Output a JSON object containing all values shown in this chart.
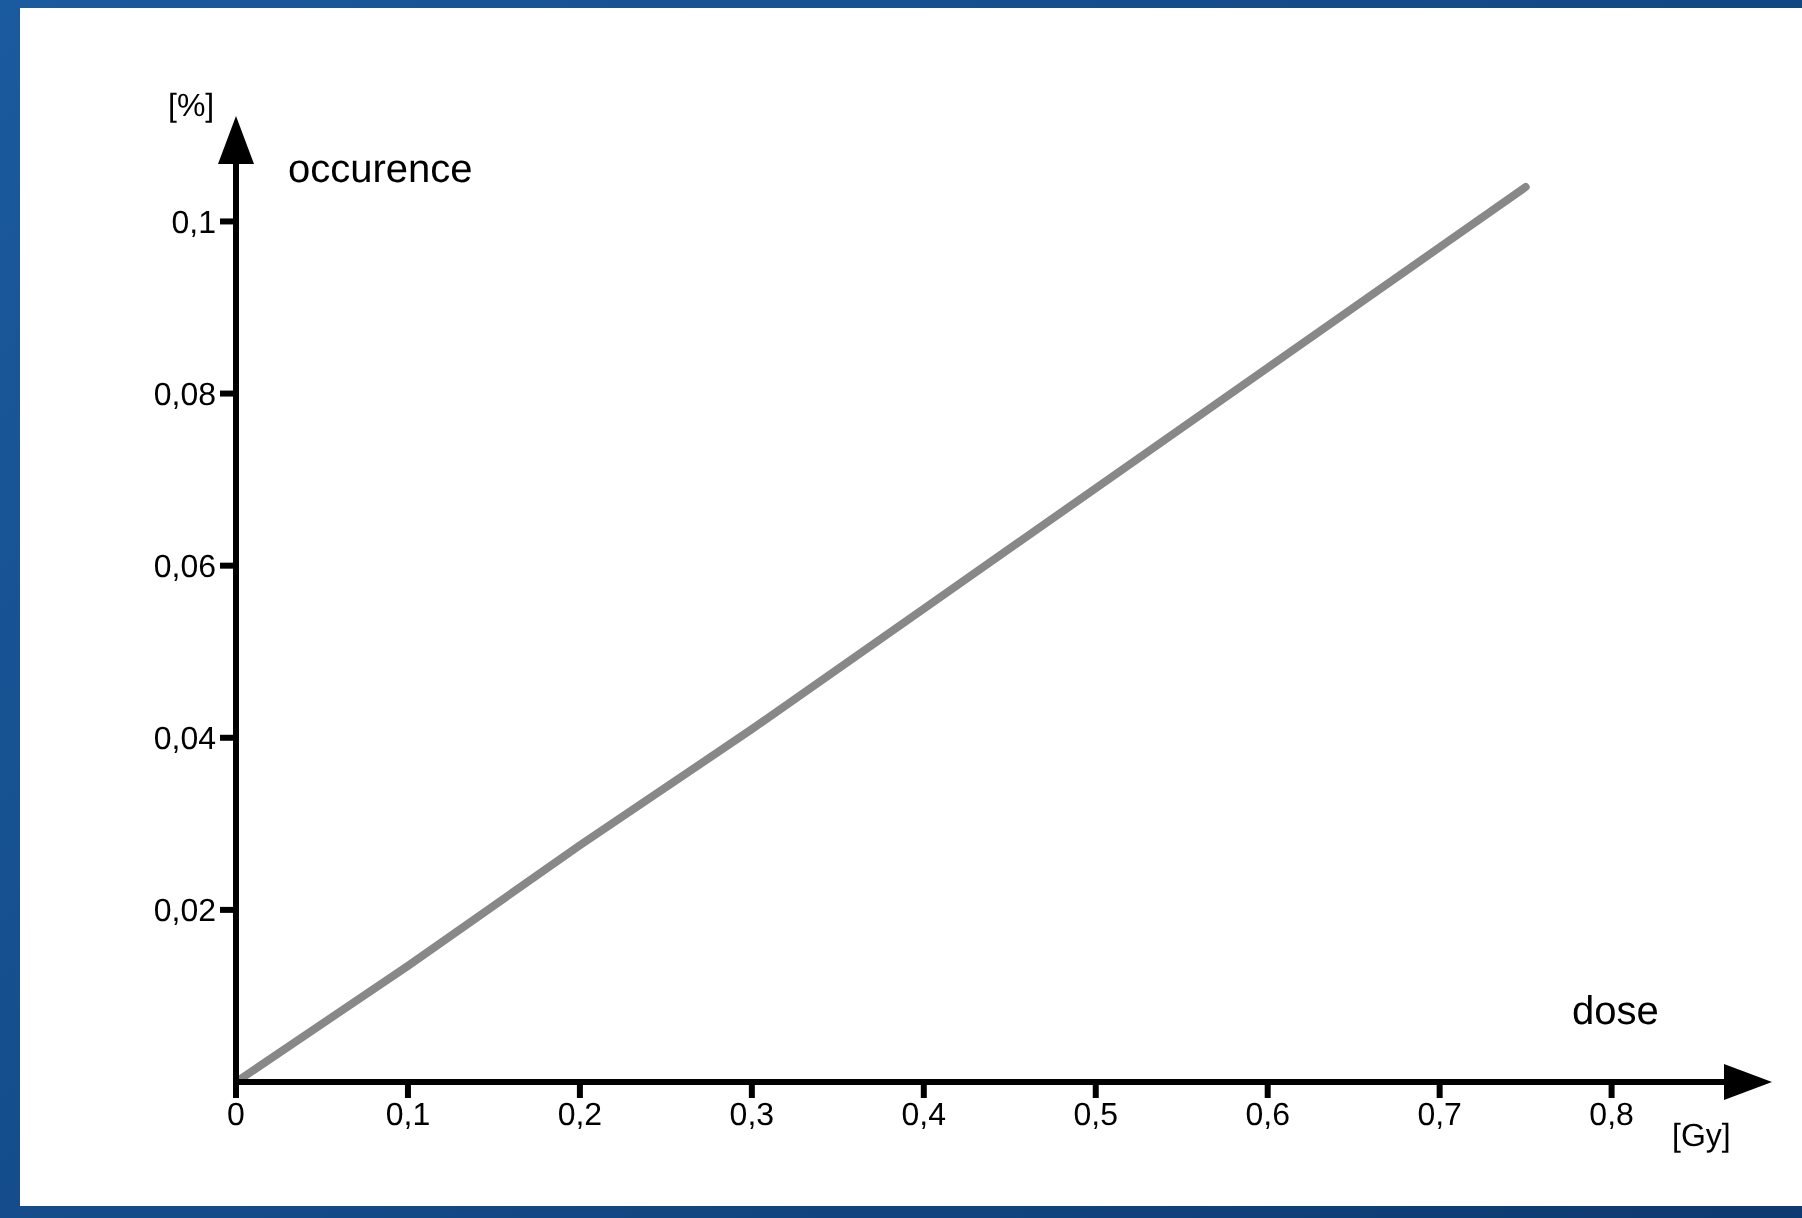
{
  "chart_data": {
    "type": "line",
    "xlabel": "dose",
    "ylabel": "occurence",
    "annotations": [
      "[%]",
      "[Gy]"
    ],
    "x": [
      0,
      0.1,
      0.2,
      0.3,
      0.4,
      0.5,
      0.6,
      0.7,
      0.75
    ],
    "series": [
      {
        "color": "#888888",
        "values": [
          0,
          0.0135,
          0.0275,
          0.041,
          0.055,
          0.069,
          0.083,
          0.097,
          0.104
        ]
      }
    ],
    "xlim": [
      0,
      0.877
    ],
    "ylim": [
      0,
      0.109
    ],
    "xticks": [
      0,
      {
        "value": 0.1,
        "label": "0,1"
      },
      {
        "value": 0.2,
        "label": "0,2"
      },
      {
        "value": 0.3,
        "label": "0,3"
      },
      {
        "value": 0.4,
        "label": "0,4"
      },
      {
        "value": 0.5,
        "label": "0,5"
      },
      {
        "value": 0.6,
        "label": "0,6"
      },
      {
        "value": 0.7,
        "label": "0,7"
      },
      {
        "value": 0.8,
        "label": "0,8"
      }
    ],
    "yticks": [
      {
        "value": 0.02,
        "label": "0,02"
      },
      {
        "value": 0.04,
        "label": "0,04"
      },
      {
        "value": 0.06,
        "label": "0,06"
      },
      {
        "value": 0.08,
        "label": "0,08"
      },
      {
        "value": 0.1,
        "label": "0,1"
      }
    ],
    "grid": false,
    "legend": false,
    "marker": "none",
    "line_style": "solid"
  }
}
